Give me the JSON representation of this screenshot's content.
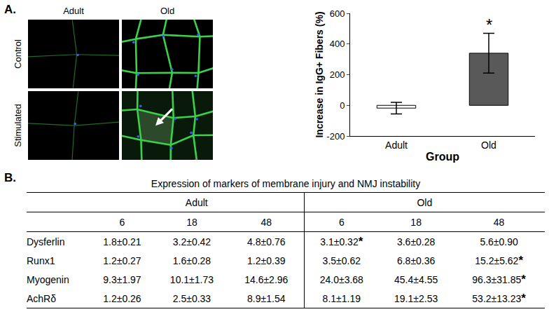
{
  "panel_labels": [
    "A.",
    "B."
  ],
  "images": {
    "columns": [
      "Adult",
      "Old"
    ],
    "rows": [
      "Control",
      "Stimulated"
    ]
  },
  "chart_data": {
    "type": "bar",
    "categories": [
      "Adult",
      "Old"
    ],
    "values": [
      -18,
      340
    ],
    "error": [
      38,
      130
    ],
    "colors": [
      "#ffffff",
      "#595959"
    ],
    "x_label": "Group",
    "y_label": "Increase in IgG+ Fibers (%)",
    "ylim": [
      -200,
      600
    ],
    "yticks": [
      -200,
      0,
      200,
      400,
      600
    ],
    "grid": false,
    "annotations": [
      {
        "category": "Old",
        "text": "*"
      }
    ]
  },
  "table": {
    "title": "Expression of markers of membrane injury and NMJ instability",
    "groups": [
      "Adult",
      "Old"
    ],
    "columns": [
      6,
      18,
      48,
      6,
      18,
      48
    ],
    "rows": [
      {
        "label": "Dysferlin",
        "cells": [
          "1.8±0.21",
          "3.2±0.42",
          "4.8±0.76",
          "3.1±0.32*",
          "3.6±0.28",
          "5.6±0.90"
        ]
      },
      {
        "label": "Runx1",
        "cells": [
          "1.2±0.27",
          "1.6±0.28",
          "1.2±0.39",
          "3.5±0.62",
          "6.8±0.36",
          "15.2±5.62*"
        ]
      },
      {
        "label": "Myogenin",
        "cells": [
          "9.3±1.97",
          "10.1±1.73",
          "14.6±2.96",
          "24.0±3.68",
          "45.4±4.55",
          "96.3±31.85*"
        ]
      },
      {
        "label": "AchRδ",
        "cells": [
          "1.2±0.26",
          "2.5±0.33",
          "8.9±1.54",
          "8.1±1.19",
          "19.1±2.53",
          "53.2±13.23*"
        ]
      }
    ]
  }
}
